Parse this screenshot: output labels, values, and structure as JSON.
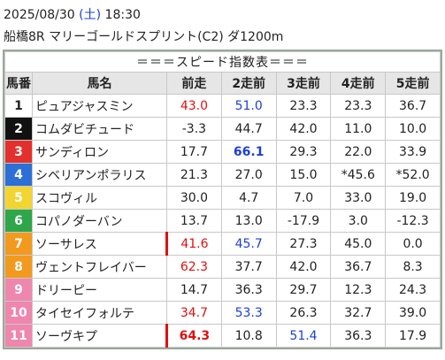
{
  "header": {
    "date": "2025/08/30",
    "weekday": "(土)",
    "time": "18:30",
    "race": "船橋8R マリーゴールドスプリント(C2) ダ1200m"
  },
  "table": {
    "title": "＝＝＝スピード指数表＝＝＝",
    "columns": [
      "馬番",
      "馬名",
      "前走",
      "2走前",
      "3走前",
      "4走前",
      "5走前"
    ],
    "rows": [
      [
        "1",
        "ピュアジャスミン",
        "43.0",
        "51.0",
        "23.3",
        "23.3",
        "36.7"
      ],
      [
        "2",
        "コムダビチュード",
        "-3.3",
        "44.7",
        "42.0",
        "11.0",
        "10.0"
      ],
      [
        "3",
        "サンディロン",
        "17.7",
        "66.1",
        "29.3",
        "22.0",
        "33.9"
      ],
      [
        "4",
        "シベリアンポラリス",
        "21.3",
        "27.0",
        "15.0",
        "*45.6",
        "*52.0"
      ],
      [
        "5",
        "スコヴィル",
        "30.0",
        "4.7",
        "7.0",
        "33.0",
        "19.0"
      ],
      [
        "6",
        "コパノダーバン",
        "13.7",
        "13.0",
        "-17.9",
        "3.0",
        "-12.3"
      ],
      [
        "7",
        "ソーサレス",
        "41.6",
        "45.7",
        "27.3",
        "45.0",
        "0.0"
      ],
      [
        "8",
        "ヴェントフレイバー",
        "62.3",
        "37.7",
        "42.0",
        "36.7",
        "8.3"
      ],
      [
        "9",
        "ドリーピー",
        "14.7",
        "36.3",
        "29.7",
        "12.3",
        "24.3"
      ],
      [
        "10",
        "タイセイフォルテ",
        "34.7",
        "53.3",
        "26.3",
        "32.7",
        "39.0"
      ],
      [
        "11",
        "ソーヴキプ",
        "64.3",
        "10.8",
        "51.4",
        "36.3",
        "17.9"
      ]
    ]
  }
}
